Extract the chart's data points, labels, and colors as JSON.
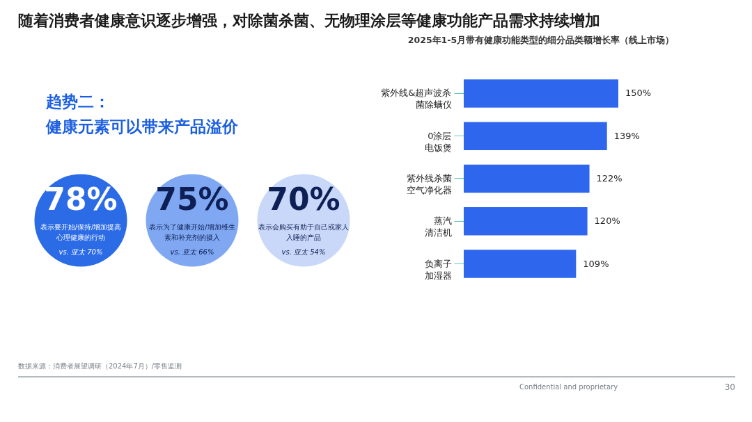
{
  "chart_data": [
    {
      "type": "other",
      "title": "随着消费者健康意识逐步增强，对除菌杀菌、无物理涂层等健康功能产品需求持续增加",
      "subtitle": "趋势二：健康元素可以带来产品溢价",
      "categories": [
        "表示要开始/保持/增加提高心理健康的行动",
        "表示为了健康开始/增加维生素和补充剂的摄入",
        "表示会购买有助于自己或家人入睡的产品"
      ],
      "value_labels": [
        "78%",
        "75%",
        "70%"
      ],
      "colors": [
        "#2b6be6",
        "#80a8f2",
        "#c9d8f8"
      ],
      "annotations": [
        "vs. 亚太 70%",
        "vs. 亚太 66%",
        "vs. 亚太 54%",
        "数据来源：消费者展望调研（2024年7月）/零售监测",
        "Confidential and proprietary",
        "30"
      ]
    },
    {
      "type": "bar",
      "orientation": "horizontal",
      "title": "2025年1-5月带有健康功能类型的细分品类额增长率（线上市场）",
      "categories": [
        "紫外线&超声波杀菌除螨仪",
        "0涂层电饭煲",
        "紫外线杀菌空气净化器",
        "蒸汽清洁机",
        "负离子加湿器"
      ],
      "tick_labels": "y",
      "series": [
        {
          "color": "#2f66ee",
          "values": [
            150,
            139,
            122,
            120,
            109
          ],
          "value_labels": [
            "150%",
            "139%",
            "122%",
            "120%",
            "109%"
          ]
        }
      ]
    }
  ]
}
